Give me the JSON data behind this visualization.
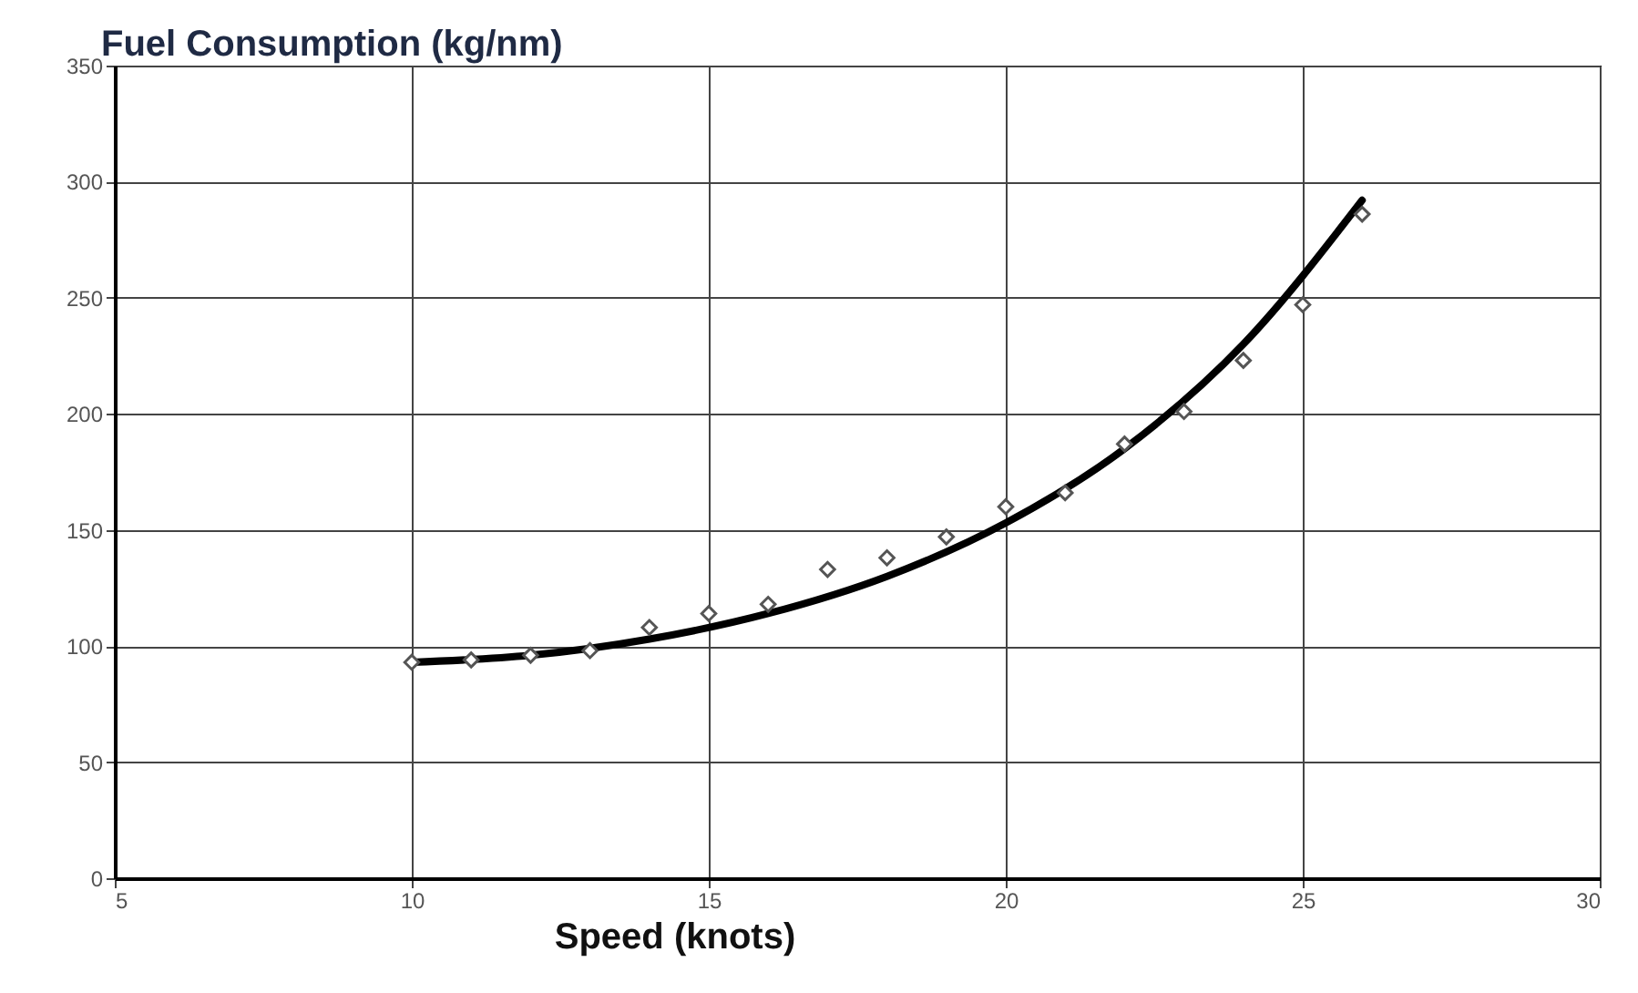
{
  "chart_data": {
    "type": "scatter",
    "xlabel": "Speed (knots)",
    "ylabel": "Fuel Consumption (kg/nm)",
    "xlim": [
      5,
      30
    ],
    "xticks": [
      5,
      10,
      15,
      20,
      25,
      30
    ],
    "ylim": [
      0,
      350
    ],
    "yticks": [
      0,
      50,
      100,
      150,
      200,
      250,
      300,
      350
    ],
    "grid": true,
    "series": [
      {
        "color": "#555555",
        "marker": "diamond",
        "x": [
          10,
          11,
          12,
          13,
          14,
          15,
          16,
          17,
          18,
          19,
          20,
          21,
          22,
          23,
          24,
          25,
          26
        ],
        "values": [
          93,
          94,
          96,
          98,
          108,
          114,
          118,
          133,
          138,
          147,
          160,
          166,
          187,
          201,
          223,
          247,
          286
        ]
      },
      {
        "type": "line",
        "color": "#000000",
        "line_style": "solid",
        "marker": "none",
        "x": [
          10,
          12,
          14,
          16,
          18,
          20,
          22,
          24,
          26
        ],
        "values": [
          93,
          96,
          103,
          114,
          130,
          153,
          185,
          230,
          292
        ]
      }
    ]
  }
}
